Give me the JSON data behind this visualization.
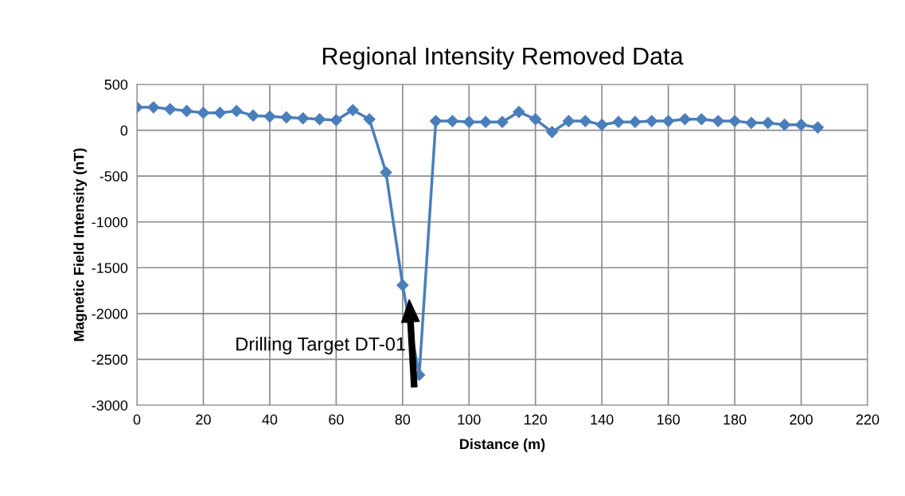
{
  "chart_data": {
    "type": "line",
    "title": "Regional Intensity Removed Data",
    "xlabel": "Distance (m)",
    "ylabel": "Magnetic Field Intensity (nT)",
    "x": [
      0,
      5,
      10,
      15,
      20,
      25,
      30,
      35,
      40,
      45,
      50,
      55,
      60,
      65,
      70,
      75,
      80,
      85,
      90,
      95,
      100,
      105,
      110,
      115,
      120,
      125,
      130,
      135,
      140,
      145,
      150,
      155,
      160,
      165,
      170,
      175,
      180,
      185,
      190,
      195,
      200,
      205
    ],
    "series": [
      {
        "color": "#4a7ebb",
        "values": [
          250,
          250,
          230,
          210,
          190,
          190,
          210,
          160,
          150,
          140,
          130,
          120,
          110,
          220,
          120,
          -460,
          -1690,
          -2670,
          100,
          100,
          90,
          90,
          90,
          200,
          120,
          -20,
          100,
          100,
          60,
          90,
          90,
          100,
          100,
          120,
          120,
          100,
          100,
          80,
          80,
          60,
          60,
          30
        ]
      }
    ],
    "xlim": [
      0,
      220
    ],
    "xticks": [
      0,
      20,
      40,
      60,
      80,
      100,
      120,
      140,
      160,
      180,
      200,
      220
    ],
    "ylim": [
      -3000,
      500
    ],
    "yticks": [
      -3000,
      -2500,
      -2000,
      -1500,
      -1000,
      -500,
      0,
      500
    ],
    "annotations": [
      {
        "text": "Drilling Target DT-01",
        "x": 82,
        "y": -1850
      }
    ],
    "grid": true,
    "legend": false,
    "marker": "diamond",
    "line_style": "solid"
  }
}
